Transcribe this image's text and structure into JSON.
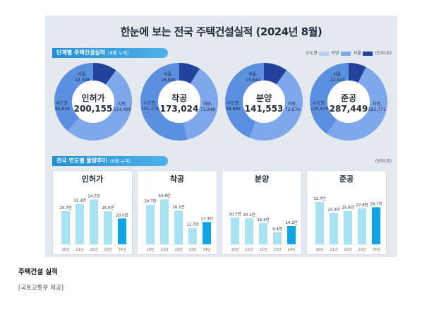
{
  "title": "한눈에 보는 전국 주택건설실적 (2024년 8월)",
  "section1": {
    "label": "단계별 주택건설실적",
    "note": "(8월 누계)"
  },
  "section2": {
    "label": "전국 연도별 물량추이",
    "note": "(8월 누계)",
    "unit": "(단위:호)"
  },
  "legend": {
    "items": [
      "수도권",
      "지방",
      "서울"
    ],
    "unit": "(단위:호)"
  },
  "colors": {
    "capital": "#5b8fe0",
    "local": "#7ea7ec",
    "seoul": "#23429c",
    "bar": "#a8e3f4",
    "bar_current": "#0fa4e4",
    "banner": "#1f8fd6"
  },
  "caption": "주택건설 실적",
  "source": "[국토교통부 제공]",
  "chart_data": [
    {
      "type": "pie",
      "title": "인허가",
      "total": "200,155",
      "labels": {
        "seoul": "서울,",
        "capital": "수도권,",
        "local": "지방,"
      },
      "values": {
        "seoul": "22,348",
        "capital": "85,656",
        "local": "114,499"
      }
    },
    {
      "type": "pie",
      "title": "착공",
      "total": "173,024",
      "labels": {
        "seoul": "서울,",
        "capital": "수도권,",
        "local": "지방,"
      },
      "values": {
        "seoul": "16,806",
        "capital": "101,176",
        "local": "71,848"
      }
    },
    {
      "type": "pie",
      "title": "분양",
      "total": "141,553",
      "labels": {
        "seoul": "서울,",
        "capital": "수도권,",
        "local": "지방,"
      },
      "values": {
        "seoul": "15,642",
        "capital": "68,883",
        "local": "72,670"
      }
    },
    {
      "type": "pie",
      "title": "준공",
      "total": "287,449",
      "labels": {
        "seoul": "서울,",
        "capital": "수도권,",
        "local": "지방,"
      },
      "values": {
        "seoul": "22,945",
        "capital": "125,678",
        "local": "161,771"
      }
    },
    {
      "type": "bar",
      "title": "인허가",
      "categories": [
        "20년",
        "21년",
        "22년",
        "23년",
        "24년"
      ],
      "values": [
        25.7,
        31.3,
        34.7,
        25.6,
        20.0
      ],
      "data_labels": [
        "25.7만",
        "31.3만",
        "34.7만",
        "25.6만",
        "20.0만"
      ]
    },
    {
      "type": "bar",
      "title": "착공",
      "categories": [
        "20년",
        "21년",
        "22년",
        "23년",
        "24년"
      ],
      "values": [
        30.7,
        34.8,
        26.1,
        12.7,
        17.3
      ],
      "data_labels": [
        "30.7만",
        "34.8만",
        "26.1만",
        "12.7만",
        "17.3만"
      ]
    },
    {
      "type": "bar",
      "title": "분양",
      "categories": [
        "20년",
        "21년",
        "22년",
        "23년",
        "24년"
      ],
      "values": [
        20.7,
        20.1,
        16.4,
        9.4,
        14.2
      ],
      "data_labels": [
        "20.7만",
        "20.1만",
        "16.4만",
        "9.4만",
        "14.2만"
      ]
    },
    {
      "type": "bar",
      "title": "준공",
      "categories": [
        "20년",
        "21년",
        "22년",
        "23년",
        "24년"
      ],
      "values": [
        32.7,
        24.4,
        25.9,
        27.8,
        28.7
      ],
      "data_labels": [
        "32.7만",
        "24.4만",
        "25.9만",
        "27.8만",
        "28.7만"
      ]
    }
  ]
}
